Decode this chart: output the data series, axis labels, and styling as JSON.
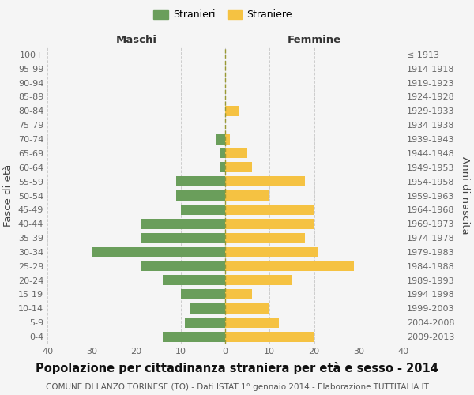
{
  "age_groups": [
    "0-4",
    "5-9",
    "10-14",
    "15-19",
    "20-24",
    "25-29",
    "30-34",
    "35-39",
    "40-44",
    "45-49",
    "50-54",
    "55-59",
    "60-64",
    "65-69",
    "70-74",
    "75-79",
    "80-84",
    "85-89",
    "90-94",
    "95-99",
    "100+"
  ],
  "birth_years": [
    "2009-2013",
    "2004-2008",
    "1999-2003",
    "1994-1998",
    "1989-1993",
    "1984-1988",
    "1979-1983",
    "1974-1978",
    "1969-1973",
    "1964-1968",
    "1959-1963",
    "1954-1958",
    "1949-1953",
    "1944-1948",
    "1939-1943",
    "1934-1938",
    "1929-1933",
    "1924-1928",
    "1919-1923",
    "1914-1918",
    "≤ 1913"
  ],
  "maschi": [
    14,
    9,
    8,
    10,
    14,
    19,
    30,
    19,
    19,
    10,
    11,
    11,
    1,
    1,
    2,
    0,
    0,
    0,
    0,
    0,
    0
  ],
  "femmine": [
    20,
    12,
    10,
    6,
    15,
    29,
    21,
    18,
    20,
    20,
    10,
    18,
    6,
    5,
    1,
    0,
    3,
    0,
    0,
    0,
    0
  ],
  "male_color": "#6a9e5b",
  "female_color": "#f5c242",
  "background_color": "#f5f5f5",
  "grid_color": "#cccccc",
  "title": "Popolazione per cittadinanza straniera per età e sesso - 2014",
  "subtitle": "COMUNE DI LANZO TORINESE (TO) - Dati ISTAT 1° gennaio 2014 - Elaborazione TUTTITALIA.IT",
  "xlabel_left": "Maschi",
  "xlabel_right": "Femmine",
  "ylabel_left": "Fasce di età",
  "ylabel_right": "Anni di nascita",
  "legend_male": "Stranieri",
  "legend_female": "Straniere",
  "xlim": 40,
  "title_fontsize": 10.5,
  "subtitle_fontsize": 7.5,
  "tick_fontsize": 8,
  "label_fontsize": 9.5
}
